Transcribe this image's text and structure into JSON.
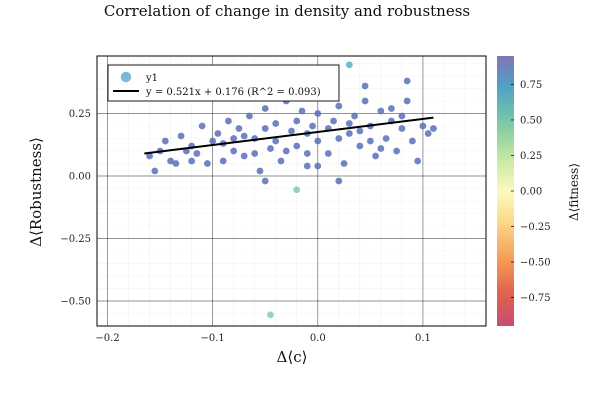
{
  "chart_data": {
    "type": "scatter",
    "title": "Correlation of change in density and robustness",
    "xlabel": "Δ⟨c⟩",
    "ylabel": "Δ⟨Robustness⟩",
    "colorbar_label": "Δ⟨fitness⟩",
    "xlim": [
      -0.21,
      0.16
    ],
    "ylim": [
      -0.6,
      0.48
    ],
    "xticks": [
      -0.2,
      -0.1,
      0.0,
      0.1
    ],
    "xtick_labels": [
      "−0.2",
      "−0.1",
      "0.0",
      "0.1"
    ],
    "yticks": [
      -0.5,
      -0.25,
      0.0,
      0.25
    ],
    "ytick_labels": [
      "−0.50",
      "−0.25",
      "0.00",
      "0.25"
    ],
    "colorbar_ticks": [
      -0.75,
      -0.5,
      -0.25,
      0.0,
      0.25,
      0.5,
      0.75
    ],
    "colorbar_tick_labels": [
      "−0.75",
      "−0.50",
      "−0.25",
      "0.00",
      "0.25",
      "0.50",
      "0.75"
    ],
    "colorbar_range": [
      -0.95,
      0.95
    ],
    "grid": true,
    "legend_position": "top-left",
    "series": [
      {
        "name": "y1",
        "kind": "scatter",
        "color": "#5a6fb8",
        "points": [
          [
            -0.16,
            0.08
          ],
          [
            -0.155,
            0.02
          ],
          [
            -0.15,
            0.1
          ],
          [
            -0.145,
            0.14
          ],
          [
            -0.14,
            0.06
          ],
          [
            -0.135,
            0.05
          ],
          [
            -0.13,
            0.16
          ],
          [
            -0.125,
            0.1
          ],
          [
            -0.12,
            0.12
          ],
          [
            -0.115,
            0.09
          ],
          [
            -0.11,
            0.2
          ],
          [
            -0.105,
            0.05
          ],
          [
            -0.1,
            0.14
          ],
          [
            -0.095,
            0.17
          ],
          [
            -0.09,
            0.06
          ],
          [
            -0.085,
            0.22
          ],
          [
            -0.08,
            0.1
          ],
          [
            -0.075,
            0.19
          ],
          [
            -0.07,
            0.08
          ],
          [
            -0.065,
            0.24
          ],
          [
            -0.06,
            0.15
          ],
          [
            -0.055,
            0.02
          ],
          [
            -0.05,
            0.27
          ],
          [
            -0.045,
            0.11
          ],
          [
            -0.04,
            0.21
          ],
          [
            -0.035,
            0.06
          ],
          [
            -0.03,
            0.3
          ],
          [
            -0.025,
            0.18
          ],
          [
            -0.02,
            0.12
          ],
          [
            -0.015,
            0.26
          ],
          [
            -0.01,
            0.04
          ],
          [
            -0.005,
            0.2
          ],
          [
            0.0,
            0.14
          ],
          [
            0.005,
            0.32
          ],
          [
            0.01,
            0.09
          ],
          [
            0.015,
            0.22
          ],
          [
            0.02,
            0.28
          ],
          [
            0.025,
            0.05
          ],
          [
            0.03,
            0.17
          ],
          [
            0.035,
            0.24
          ],
          [
            0.04,
            0.12
          ],
          [
            0.045,
            0.3
          ],
          [
            0.05,
            0.2
          ],
          [
            0.055,
            0.08
          ],
          [
            0.06,
            0.26
          ],
          [
            0.065,
            0.15
          ],
          [
            0.07,
            0.22
          ],
          [
            0.075,
            0.1
          ],
          [
            0.08,
            0.19
          ],
          [
            0.085,
            0.3
          ],
          [
            0.09,
            0.14
          ],
          [
            0.095,
            0.06
          ],
          [
            0.1,
            0.2
          ],
          [
            0.105,
            0.17
          ],
          [
            0.11,
            0.19
          ],
          [
            -0.09,
            0.13
          ],
          [
            -0.07,
            0.16
          ],
          [
            -0.05,
            0.19
          ],
          [
            -0.03,
            0.1
          ],
          [
            -0.01,
            0.17
          ],
          [
            0.01,
            0.19
          ],
          [
            0.03,
            0.21
          ],
          [
            0.05,
            0.14
          ],
          [
            0.07,
            0.27
          ],
          [
            -0.04,
            0.14
          ],
          [
            -0.02,
            0.22
          ],
          [
            0.0,
            0.25
          ],
          [
            0.02,
            0.15
          ],
          [
            0.04,
            0.18
          ],
          [
            -0.06,
            0.09
          ],
          [
            -0.08,
            0.15
          ],
          [
            -0.12,
            0.06
          ],
          [
            0.06,
            0.11
          ],
          [
            0.08,
            0.24
          ],
          [
            -0.01,
            0.09
          ],
          [
            0.0,
            0.04
          ],
          [
            0.02,
            -0.02
          ],
          [
            -0.05,
            -0.02
          ],
          [
            0.045,
            0.36
          ],
          [
            0.085,
            0.38
          ],
          [
            0.03,
            0.445
          ],
          [
            -0.045,
            -0.555
          ],
          [
            -0.02,
            -0.055
          ]
        ]
      }
    ],
    "point_colorbar_values": {
      "0.03,0.445": 0.55,
      "-0.045,-0.555": 0.62,
      "-0.02,-0.055": 0.72
    },
    "fit_line": {
      "label": "y = 0.521x + 0.176 (R^2 = 0.093)",
      "slope": 0.521,
      "intercept": 0.176,
      "x_range": [
        -0.165,
        0.11
      ],
      "color": "#000000"
    }
  }
}
